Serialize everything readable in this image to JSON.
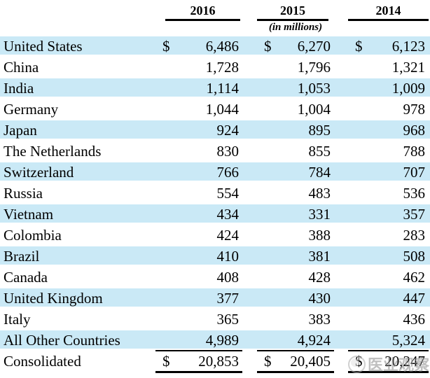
{
  "table": {
    "columns": [
      "2016",
      "2015",
      "2014"
    ],
    "units_note": "(in millions)",
    "currency_symbol": "$",
    "row_shade_color": "#cae9f6",
    "rows": [
      {
        "name": "United States",
        "y2016": "6,486",
        "y2015": "6,270",
        "y2014": "6,123"
      },
      {
        "name": "China",
        "y2016": "1,728",
        "y2015": "1,796",
        "y2014": "1,321"
      },
      {
        "name": "India",
        "y2016": "1,114",
        "y2015": "1,053",
        "y2014": "1,009"
      },
      {
        "name": "Germany",
        "y2016": "1,044",
        "y2015": "1,004",
        "y2014": "978"
      },
      {
        "name": "Japan",
        "y2016": "924",
        "y2015": "895",
        "y2014": "968"
      },
      {
        "name": "The Netherlands",
        "y2016": "830",
        "y2015": "855",
        "y2014": "788"
      },
      {
        "name": "Switzerland",
        "y2016": "766",
        "y2015": "784",
        "y2014": "707"
      },
      {
        "name": "Russia",
        "y2016": "554",
        "y2015": "483",
        "y2014": "536"
      },
      {
        "name": "Vietnam",
        "y2016": "434",
        "y2015": "331",
        "y2014": "357"
      },
      {
        "name": "Colombia",
        "y2016": "424",
        "y2015": "388",
        "y2014": "283"
      },
      {
        "name": "Brazil",
        "y2016": "410",
        "y2015": "381",
        "y2014": "508"
      },
      {
        "name": "Canada",
        "y2016": "408",
        "y2015": "428",
        "y2014": "462"
      },
      {
        "name": "United Kingdom",
        "y2016": "377",
        "y2015": "430",
        "y2014": "447"
      },
      {
        "name": "Italy",
        "y2016": "365",
        "y2015": "383",
        "y2014": "436"
      },
      {
        "name": "All Other Countries",
        "y2016": "4,989",
        "y2015": "4,924",
        "y2014": "5,324"
      },
      {
        "name": "Consolidated",
        "y2016": "20,853",
        "y2015": "20,405",
        "y2014": "20,247"
      }
    ]
  },
  "watermark": {
    "text": "医业观察"
  }
}
